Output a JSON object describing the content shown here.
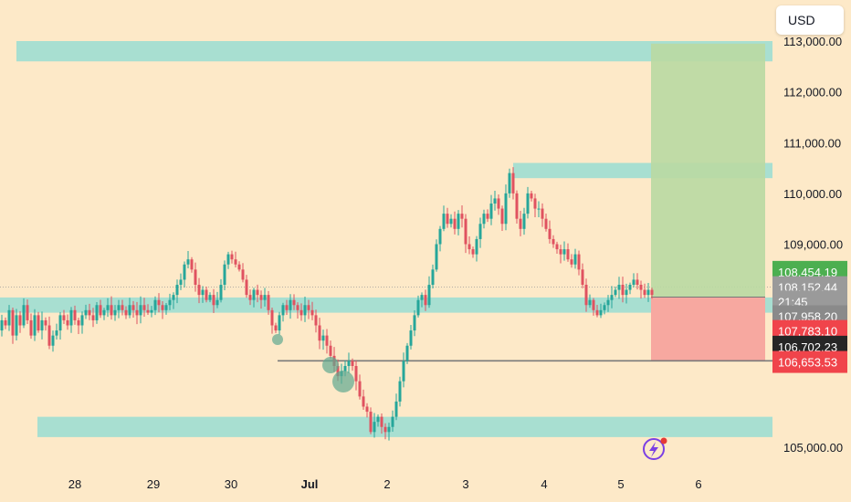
{
  "toolbar": {
    "currency_label": "USD"
  },
  "colors": {
    "background": "#fde9c8",
    "up_candle": "#26a69a",
    "down_candle": "#e05260",
    "zone": "#a8dfd1",
    "target_zone": "#b9d9a2",
    "stop_zone": "#f7a8a0",
    "tag_green": "#4caf50",
    "tag_gray": "#8a8a8a",
    "tag_red": "#f0444b",
    "tag_black": "#262626"
  },
  "chart_data": {
    "type": "candlestick",
    "symbol_currency": "USD",
    "ylim": [
      104700,
      113200
    ],
    "y_ticks": [
      {
        "value": 113000,
        "label": "113,000.00"
      },
      {
        "value": 112000,
        "label": "112,000.00"
      },
      {
        "value": 111000,
        "label": "111,000.00"
      },
      {
        "value": 110000,
        "label": "110,000.00"
      },
      {
        "value": 109000,
        "label": "109,000.00"
      },
      {
        "value": 105000,
        "label": "105,000.00"
      }
    ],
    "x_ticks": [
      {
        "label": "28",
        "bold": false
      },
      {
        "label": "29",
        "bold": false
      },
      {
        "label": "30",
        "bold": false
      },
      {
        "label": "Jul",
        "bold": true
      },
      {
        "label": "2",
        "bold": false
      },
      {
        "label": "3",
        "bold": false
      },
      {
        "label": "4",
        "bold": false
      },
      {
        "label": "5",
        "bold": false
      },
      {
        "label": "6",
        "bold": false
      }
    ],
    "price_path": [
      [
        0,
        107300
      ],
      [
        4,
        107500
      ],
      [
        8,
        107400
      ],
      [
        12,
        107700
      ],
      [
        16,
        107200
      ],
      [
        20,
        107600
      ],
      [
        24,
        107400
      ],
      [
        28,
        107800
      ],
      [
        32,
        107500
      ],
      [
        36,
        107200
      ],
      [
        40,
        107600
      ],
      [
        44,
        107300
      ],
      [
        48,
        107500
      ],
      [
        52,
        107400
      ],
      [
        56,
        107000
      ],
      [
        60,
        107200
      ],
      [
        64,
        107300
      ],
      [
        68,
        107600
      ],
      [
        72,
        107500
      ],
      [
        76,
        107400
      ],
      [
        80,
        107700
      ],
      [
        84,
        107500
      ],
      [
        88,
        107400
      ],
      [
        92,
        107600
      ],
      [
        96,
        107700
      ],
      [
        100,
        107600
      ],
      [
        104,
        107500
      ],
      [
        108,
        107800
      ],
      [
        112,
        107600
      ],
      [
        116,
        107700
      ],
      [
        120,
        107800
      ],
      [
        124,
        107600
      ],
      [
        128,
        107700
      ],
      [
        132,
        107800
      ],
      [
        136,
        107700
      ],
      [
        140,
        107600
      ],
      [
        144,
        107800
      ],
      [
        148,
        107700
      ],
      [
        152,
        107600
      ],
      [
        156,
        107800
      ],
      [
        160,
        107700
      ],
      [
        164,
        107650
      ],
      [
        168,
        107700
      ],
      [
        172,
        107900
      ],
      [
        176,
        107800
      ],
      [
        180,
        107700
      ],
      [
        184,
        107800
      ],
      [
        188,
        107900
      ],
      [
        192,
        108000
      ],
      [
        196,
        108200
      ],
      [
        200,
        108300
      ],
      [
        204,
        108600
      ],
      [
        208,
        108700
      ],
      [
        212,
        108500
      ],
      [
        216,
        108200
      ],
      [
        220,
        108000
      ],
      [
        224,
        108100
      ],
      [
        228,
        107900
      ],
      [
        232,
        108000
      ],
      [
        236,
        107800
      ],
      [
        240,
        107900
      ],
      [
        244,
        108200
      ],
      [
        248,
        108600
      ],
      [
        252,
        108800
      ],
      [
        256,
        108700
      ],
      [
        260,
        108600
      ],
      [
        264,
        108500
      ],
      [
        268,
        108300
      ],
      [
        272,
        108000
      ],
      [
        276,
        107900
      ],
      [
        280,
        108100
      ],
      [
        284,
        108000
      ],
      [
        288,
        107900
      ],
      [
        292,
        108000
      ],
      [
        296,
        107700
      ],
      [
        300,
        107400
      ],
      [
        304,
        107300
      ],
      [
        308,
        107600
      ],
      [
        312,
        107800
      ],
      [
        316,
        107700
      ],
      [
        320,
        107900
      ],
      [
        324,
        107800
      ],
      [
        328,
        107700
      ],
      [
        332,
        107600
      ],
      [
        336,
        107800
      ],
      [
        340,
        107700
      ],
      [
        344,
        107600
      ],
      [
        348,
        107400
      ],
      [
        352,
        107100
      ],
      [
        356,
        107200
      ],
      [
        360,
        107000
      ],
      [
        364,
        106800
      ],
      [
        368,
        106600
      ],
      [
        372,
        106400
      ],
      [
        376,
        106500
      ],
      [
        380,
        106600
      ],
      [
        384,
        106700
      ],
      [
        388,
        106600
      ],
      [
        392,
        106300
      ],
      [
        396,
        106000
      ],
      [
        400,
        105800
      ],
      [
        404,
        105700
      ],
      [
        408,
        105300
      ],
      [
        412,
        105500
      ],
      [
        416,
        105600
      ],
      [
        420,
        105400
      ],
      [
        424,
        105300
      ],
      [
        428,
        105400
      ],
      [
        432,
        105600
      ],
      [
        436,
        105900
      ],
      [
        440,
        106300
      ],
      [
        444,
        106700
      ],
      [
        448,
        107000
      ],
      [
        452,
        107300
      ],
      [
        456,
        107600
      ],
      [
        460,
        107900
      ],
      [
        464,
        108000
      ],
      [
        468,
        107800
      ],
      [
        472,
        108200
      ],
      [
        476,
        108500
      ],
      [
        480,
        109000
      ],
      [
        484,
        109300
      ],
      [
        488,
        109600
      ],
      [
        492,
        109400
      ],
      [
        496,
        109500
      ],
      [
        500,
        109300
      ],
      [
        504,
        109600
      ],
      [
        508,
        109500
      ],
      [
        512,
        109000
      ],
      [
        516,
        108900
      ],
      [
        520,
        108800
      ],
      [
        524,
        109100
      ],
      [
        528,
        109400
      ],
      [
        532,
        109600
      ],
      [
        536,
        109500
      ],
      [
        540,
        109800
      ],
      [
        544,
        109900
      ],
      [
        548,
        109700
      ],
      [
        552,
        109400
      ],
      [
        556,
        110000
      ],
      [
        560,
        110400
      ],
      [
        564,
        110000
      ],
      [
        568,
        109500
      ],
      [
        572,
        109300
      ],
      [
        576,
        109600
      ],
      [
        580,
        110000
      ],
      [
        584,
        109900
      ],
      [
        588,
        109700
      ],
      [
        592,
        109700
      ],
      [
        596,
        109500
      ],
      [
        600,
        109300
      ],
      [
        604,
        109100
      ],
      [
        608,
        109000
      ],
      [
        612,
        108900
      ],
      [
        616,
        108800
      ],
      [
        620,
        108900
      ],
      [
        624,
        108700
      ],
      [
        628,
        108600
      ],
      [
        632,
        108800
      ],
      [
        636,
        108500
      ],
      [
        640,
        108200
      ],
      [
        644,
        107800
      ],
      [
        648,
        107900
      ],
      [
        652,
        107700
      ],
      [
        656,
        107600
      ],
      [
        660,
        107700
      ],
      [
        664,
        107800
      ],
      [
        668,
        107900
      ],
      [
        672,
        108000
      ],
      [
        676,
        108100
      ],
      [
        680,
        108200
      ],
      [
        684,
        108000
      ],
      [
        688,
        108100
      ],
      [
        692,
        108200
      ],
      [
        696,
        108300
      ],
      [
        700,
        108200
      ],
      [
        704,
        108100
      ],
      [
        708,
        108000
      ],
      [
        712,
        108100
      ],
      [
        716,
        108000
      ]
    ],
    "zones": [
      {
        "name": "top-zone",
        "x0": 18,
        "x1": 846,
        "y_top": 113000,
        "y_bottom": 112600
      },
      {
        "name": "mid-upper-zone",
        "x0": 562,
        "x1": 846,
        "y_top": 110600,
        "y_bottom": 110300
      },
      {
        "name": "mid-zone",
        "x0": 0,
        "x1": 846,
        "y_top": 107950,
        "y_bottom": 107650
      },
      {
        "name": "bottom-zone",
        "x0": 41,
        "x1": 846,
        "y_top": 105600,
        "y_bottom": 105200
      }
    ],
    "horizontal_line": {
      "value": 106702.23,
      "x0": 304,
      "x1": 846
    },
    "position": {
      "x0": 713,
      "x1": 838,
      "target": 112950,
      "entry": 107958.2,
      "stop": 106702.23
    },
    "price_tags": [
      {
        "label": "108,454.19",
        "color": "green",
        "value": 108454.19
      },
      {
        "label": "108,152.44",
        "color": "gray",
        "value": 108152.44
      },
      {
        "label": "21:45",
        "color": "gray",
        "value": 107870
      },
      {
        "label": "107,958.20",
        "color": "gray2",
        "value": 107580
      },
      {
        "label": "107,783.10",
        "color": "red",
        "value": 107290
      },
      {
        "label": "106,702.23",
        "color": "black",
        "value": 106980
      },
      {
        "label": "106,653.53",
        "color": "red",
        "value": 106680
      }
    ]
  }
}
